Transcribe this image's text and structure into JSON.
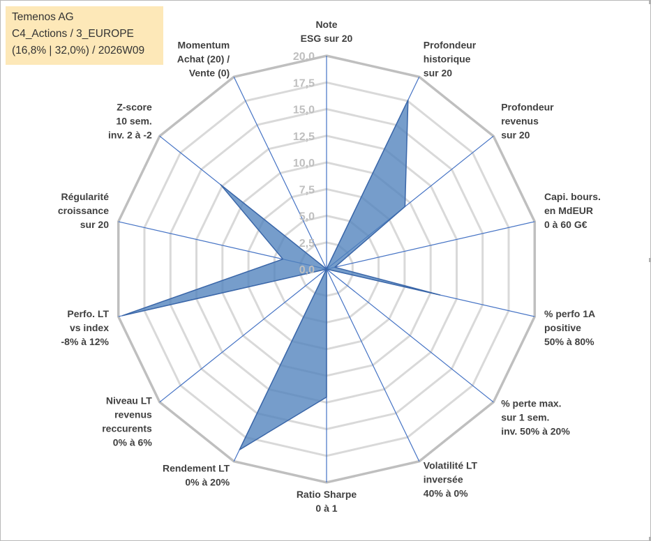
{
  "info": {
    "line1": "Temenos AG",
    "line2": "C4_Actions / 3_EUROPE",
    "line3": "(16,8% | 32,0%) / 2026W09"
  },
  "chart_data": {
    "type": "radar",
    "title": "",
    "rmin": 0,
    "rmax": 20,
    "tick_step": 2.5,
    "tick_labels": [
      "0,0",
      "2,5",
      "5,0",
      "7,5",
      "10,0",
      "12,5",
      "15,0",
      "17,5",
      "20,0"
    ],
    "axes": [
      {
        "lines": [
          "Note",
          "ESG sur 20"
        ]
      },
      {
        "lines": [
          "Profondeur",
          "historique",
          "sur 20"
        ]
      },
      {
        "lines": [
          "Profondeur",
          "revenus",
          "sur 20"
        ]
      },
      {
        "lines": [
          "Capi. bours.",
          "en MdEUR",
          "0 à 60 G€"
        ]
      },
      {
        "lines": [
          "% perfo 1A",
          "positive",
          "50% à 80%"
        ]
      },
      {
        "lines": [
          "% perte max.",
          "sur 1 sem.",
          "inv. 50% à 20%"
        ]
      },
      {
        "lines": [
          "Volatilité LT",
          "inversée",
          "40% à 0%"
        ]
      },
      {
        "lines": [
          "Ratio Sharpe",
          "0 à 1"
        ]
      },
      {
        "lines": [
          "Rendement LT",
          "0% à 20%"
        ]
      },
      {
        "lines": [
          "Niveau LT",
          "revenus",
          "reccurents",
          "0% à 6%"
        ]
      },
      {
        "lines": [
          "Perfo. LT",
          "vs index",
          "-8% à 12%"
        ]
      },
      {
        "lines": [
          "Régularité",
          "croissance",
          "sur 20"
        ]
      },
      {
        "lines": [
          "Z-score",
          "10 sem.",
          "inv. 2 à -2"
        ]
      },
      {
        "lines": [
          "Momentum",
          "Achat (20) /",
          "Vente (0)"
        ]
      }
    ],
    "series": [
      {
        "name": "Temenos AG",
        "values": [
          0.0,
          17.6,
          9.4,
          0.8,
          10.9,
          0.0,
          0.0,
          12.0,
          18.8,
          0.0,
          19.6,
          4.2,
          12.7,
          0.0
        ],
        "color": "#4f81bd"
      }
    ],
    "grid": true,
    "legend": "none"
  }
}
